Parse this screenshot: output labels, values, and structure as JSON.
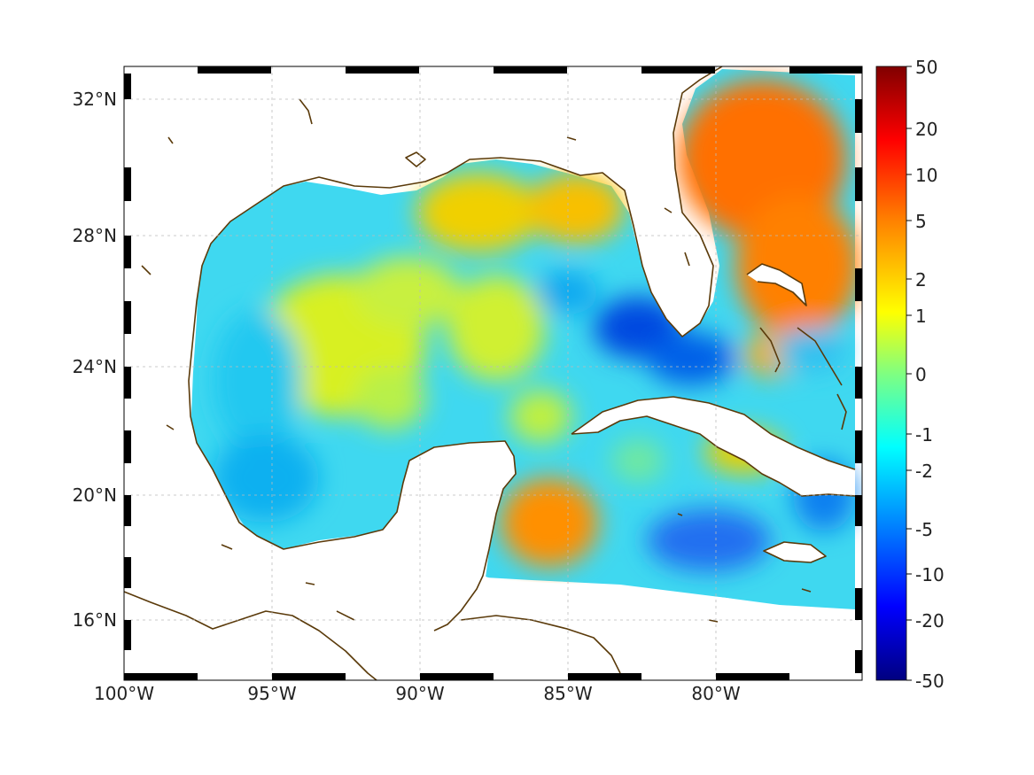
{
  "map": {
    "lon_ticks": [
      "100°W",
      "95°W",
      "90°W",
      "85°W",
      "80°W"
    ],
    "lat_ticks": [
      "32°N",
      "28°N",
      "24°N",
      "20°N",
      "16°N"
    ],
    "extent": {
      "lon": [
        -100,
        -75
      ],
      "lat": [
        14.3,
        33
      ]
    },
    "grid": true,
    "coastline_color": "#5a3a0a",
    "ocean_field": "diverging colour-mapped field over the Gulf of Mexico, Florida Straits and Caribbean; Atlantic side high (orange), Gulf interior mostly yellow/cyan, Straits of Florida low (blue)"
  },
  "colorbar": {
    "tick_labels": [
      "50",
      "20",
      "10",
      "5",
      "2",
      "1",
      "0",
      "-1",
      "-2",
      "-5",
      "-10",
      "-20",
      "-50"
    ],
    "colors": [
      "#800000",
      "#ff0000",
      "#ff8000",
      "#ffff00",
      "#80ff80",
      "#00ffff",
      "#0080ff",
      "#0000ff",
      "#000080"
    ]
  }
}
